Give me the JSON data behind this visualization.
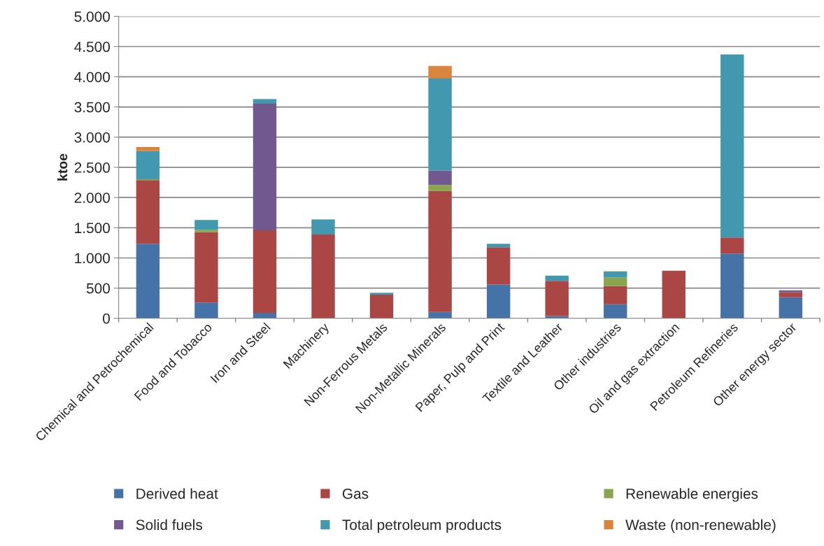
{
  "chart_data": {
    "type": "bar",
    "stacked": true,
    "ylabel": "ktoe",
    "categories": [
      "Chemical and Petrochemical",
      "Food and Tobacco",
      "Iron and Steel",
      "Machinery",
      "Non-Ferrous Metals",
      "Non-Metallic Minerals",
      "Paper, Pulp and Print",
      "Textile and Leather",
      "Other industries",
      "Oil and gas extraction",
      "Petroleum Refineries",
      "Other energy sector"
    ],
    "series": [
      {
        "name": "Derived heat",
        "color": "#4572a7",
        "values": [
          1235,
          262,
          89,
          null,
          null,
          104,
          559,
          39,
          231,
          null,
          1073,
          347
        ]
      },
      {
        "name": "Gas",
        "color": "#aa4643",
        "values": [
          1053,
          1165,
          1369,
          1387,
          392,
          2006,
          618,
          582,
          301,
          787,
          266,
          85
        ]
      },
      {
        "name": "Renewable energies",
        "color": "#89a54e",
        "values": [
          15,
          39,
          0,
          0,
          0,
          97,
          0,
          0,
          143,
          0,
          0,
          0
        ]
      },
      {
        "name": "Solid fuels",
        "color": "#71588f",
        "values": [
          0,
          0,
          2099,
          0,
          0,
          243,
          0,
          0,
          0,
          0,
          0,
          31
        ]
      },
      {
        "name": "Total petroleum products",
        "color": "#4198af",
        "values": [
          467,
          162,
          73,
          250,
          31,
          1524,
          58,
          85,
          100,
          0,
          3032,
          0
        ]
      },
      {
        "name": "Waste (non-renewable)",
        "color": "#db843d",
        "values": [
          66,
          0,
          0,
          0,
          0,
          204,
          0,
          0,
          5,
          0,
          0,
          0
        ]
      }
    ],
    "ylim": [
      0,
      5000
    ],
    "yticks": [
      {
        "value": 0,
        "label": "0"
      },
      {
        "value": 500,
        "label": "500"
      },
      {
        "value": 1000,
        "label": "1.000"
      },
      {
        "value": 1500,
        "label": "1.500"
      },
      {
        "value": 2000,
        "label": "2.000"
      },
      {
        "value": 2500,
        "label": "2.500"
      },
      {
        "value": 3000,
        "label": "3.000"
      },
      {
        "value": 3500,
        "label": "3.500"
      },
      {
        "value": 4000,
        "label": "4.000"
      },
      {
        "value": 4500,
        "label": "4.500"
      },
      {
        "value": 5000,
        "label": "5.000"
      }
    ],
    "grid": "y",
    "legend": "bottom"
  }
}
